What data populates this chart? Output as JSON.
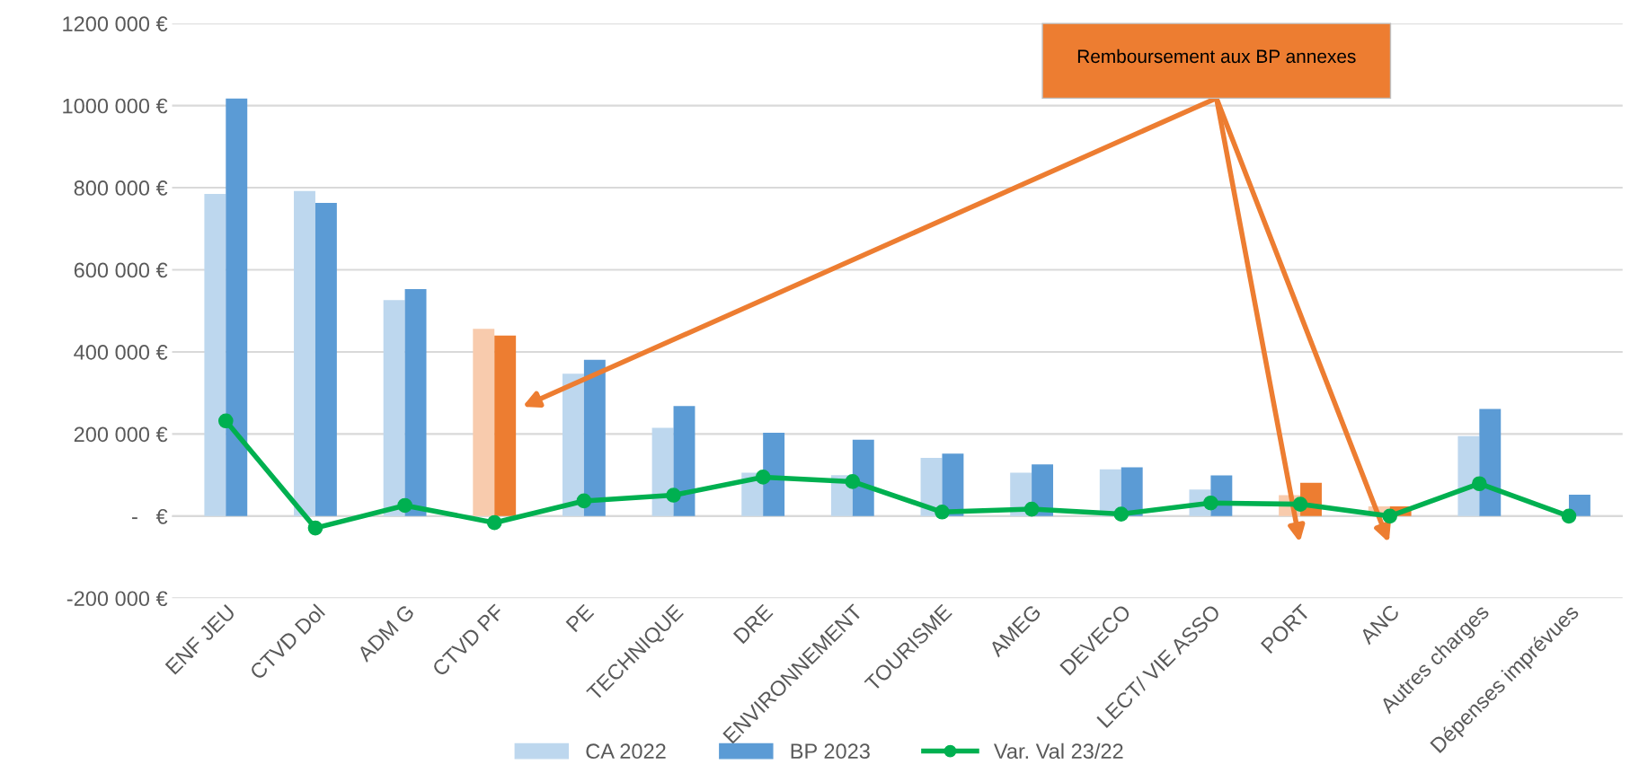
{
  "chart_data": {
    "type": "bar",
    "categories": [
      "ENF JEU",
      "CTVD Dol",
      "ADM G",
      "CTVD PF",
      "PE",
      "TECHNIQUE",
      "DRE",
      "ENVIRONNEMENT",
      "TOURISME",
      "AMEG",
      "DEVECO",
      "LECT/ VIE ASSO",
      "PORT",
      "ANC",
      "Autres charges",
      "Dépenses imprévues"
    ],
    "series": [
      {
        "name": "CA 2022",
        "color": "#bdd7ee",
        "colors": [
          "#bdd7ee",
          "#bdd7ee",
          "#bdd7ee",
          "#f8cbad",
          "#bdd7ee",
          "#bdd7ee",
          "#bdd7ee",
          "#bdd7ee",
          "#bdd7ee",
          "#bdd7ee",
          "#bdd7ee",
          "#bdd7ee",
          "#f8cbad",
          "#f8cbad",
          "#bdd7ee",
          "#bdd7ee"
        ],
        "values": [
          785000,
          792000,
          526000,
          456000,
          347000,
          215000,
          106000,
          100000,
          142000,
          106000,
          114000,
          65000,
          51000,
          24000,
          195000,
          null
        ]
      },
      {
        "name": "BP 2023",
        "color": "#5b9bd5",
        "colors": [
          "#5b9bd5",
          "#5b9bd5",
          "#5b9bd5",
          "#ed7d31",
          "#5b9bd5",
          "#5b9bd5",
          "#5b9bd5",
          "#5b9bd5",
          "#5b9bd5",
          "#5b9bd5",
          "#5b9bd5",
          "#5b9bd5",
          "#ed7d31",
          "#ed7d31",
          "#5b9bd5",
          "#5b9bd5"
        ],
        "values": [
          1017000,
          763000,
          553000,
          440000,
          381000,
          268000,
          203000,
          186000,
          152000,
          126000,
          119000,
          99000,
          81000,
          24000,
          261000,
          52000
        ]
      },
      {
        "name": "Var. Val 23/22",
        "type": "line",
        "color": "#00b050",
        "values": [
          232000,
          -29000,
          26000,
          -16000,
          37000,
          51000,
          95000,
          84000,
          10000,
          17000,
          5000,
          32000,
          29000,
          0,
          79000,
          0
        ]
      }
    ],
    "ylim": [
      -200000,
      1200000
    ],
    "yticks": [
      {
        "value": -200000,
        "label": "-200 000 €"
      },
      {
        "value": 0,
        "label": "-   €"
      },
      {
        "value": 200000,
        "label": "200 000 €"
      },
      {
        "value": 400000,
        "label": "400 000 €"
      },
      {
        "value": 600000,
        "label": "600 000 €"
      },
      {
        "value": 800000,
        "label": "800 000 €"
      },
      {
        "value": 1000000,
        "label": "1000 000 €"
      },
      {
        "value": 1200000,
        "label": "1200 000 €"
      }
    ],
    "grid": "y",
    "legend": "bottom",
    "marker": "circle",
    "line_style": "solid",
    "annotations": [
      "Remboursement aux BP annexes"
    ]
  }
}
